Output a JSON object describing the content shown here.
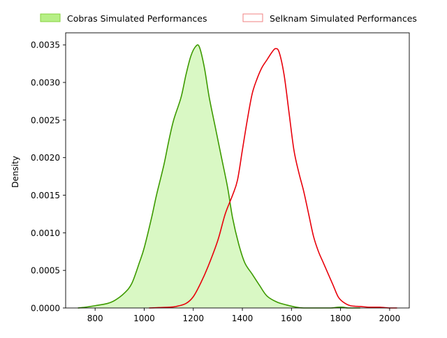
{
  "chart_data": {
    "type": "area",
    "xlabel": "",
    "ylabel": "Density",
    "xlim": [
      680,
      2080
    ],
    "ylim": [
      0,
      0.00366
    ],
    "x_ticks": [
      800,
      1000,
      1200,
      1400,
      1600,
      1800,
      2000
    ],
    "y_ticks": [
      0.0,
      0.0005,
      0.001,
      0.0015,
      0.002,
      0.0025,
      0.003,
      0.0035
    ],
    "y_tick_labels": [
      "0.0000",
      "0.0005",
      "0.0010",
      "0.0015",
      "0.0020",
      "0.0025",
      "0.0030",
      "0.0035"
    ],
    "grid": false,
    "legend_position": "top-center, outside plot",
    "series": [
      {
        "name": "Cobras Simulated Performances",
        "filled": true,
        "line_color": "#3d9a00",
        "fill_color": "#d9f8c4",
        "legend_fill": "#b6ef86",
        "legend_edge": "#86d23c",
        "points": [
          [
            730,
            0.0
          ],
          [
            760,
            1e-05
          ],
          [
            800,
            3e-05
          ],
          [
            850,
            6e-05
          ],
          [
            880,
            0.0001
          ],
          [
            920,
            0.0002
          ],
          [
            950,
            0.00033
          ],
          [
            980,
            0.0006
          ],
          [
            1000,
            0.0008
          ],
          [
            1030,
            0.0012
          ],
          [
            1050,
            0.0015
          ],
          [
            1080,
            0.0019
          ],
          [
            1100,
            0.00222
          ],
          [
            1120,
            0.0025
          ],
          [
            1150,
            0.0028
          ],
          [
            1170,
            0.0031
          ],
          [
            1190,
            0.00335
          ],
          [
            1210,
            0.00348
          ],
          [
            1225,
            0.00347
          ],
          [
            1245,
            0.0032
          ],
          [
            1265,
            0.0028
          ],
          [
            1290,
            0.0024
          ],
          [
            1315,
            0.002
          ],
          [
            1340,
            0.0016
          ],
          [
            1360,
            0.0012
          ],
          [
            1385,
            0.00085
          ],
          [
            1410,
            0.0006
          ],
          [
            1440,
            0.00045
          ],
          [
            1470,
            0.0003
          ],
          [
            1500,
            0.00016
          ],
          [
            1540,
            8e-05
          ],
          [
            1580,
            4e-05
          ],
          [
            1620,
            1e-05
          ],
          [
            1650,
            0.0
          ],
          [
            1700,
            0.0
          ],
          [
            1760,
            0.0
          ],
          [
            1790,
            1e-05
          ],
          [
            1810,
            1e-05
          ],
          [
            1830,
            0.0
          ],
          [
            1880,
            0.0
          ]
        ]
      },
      {
        "name": "Selknam Simulated Performances",
        "filled": false,
        "line_color": "#e8000b",
        "legend_fill": "#ffffff",
        "legend_edge": "#f08080",
        "points": [
          [
            1020,
            0.0
          ],
          [
            1060,
            5e-06
          ],
          [
            1100,
            1e-05
          ],
          [
            1130,
            2e-05
          ],
          [
            1170,
            6e-05
          ],
          [
            1200,
            0.00015
          ],
          [
            1230,
            0.00033
          ],
          [
            1260,
            0.00055
          ],
          [
            1300,
            0.0009
          ],
          [
            1330,
            0.00125
          ],
          [
            1360,
            0.0015
          ],
          [
            1380,
            0.0017
          ],
          [
            1400,
            0.0021
          ],
          [
            1420,
            0.0025
          ],
          [
            1440,
            0.00285
          ],
          [
            1460,
            0.00305
          ],
          [
            1480,
            0.0032
          ],
          [
            1500,
            0.0033
          ],
          [
            1520,
            0.0034
          ],
          [
            1535,
            0.00345
          ],
          [
            1550,
            0.0034
          ],
          [
            1570,
            0.0031
          ],
          [
            1590,
            0.0026
          ],
          [
            1610,
            0.0021
          ],
          [
            1630,
            0.0018
          ],
          [
            1650,
            0.00155
          ],
          [
            1670,
            0.00125
          ],
          [
            1690,
            0.00095
          ],
          [
            1710,
            0.00075
          ],
          [
            1730,
            0.0006
          ],
          [
            1750,
            0.00045
          ],
          [
            1770,
            0.0003
          ],
          [
            1790,
            0.00015
          ],
          [
            1810,
            8e-05
          ],
          [
            1840,
            3e-05
          ],
          [
            1880,
            2e-05
          ],
          [
            1920,
            1e-05
          ],
          [
            1960,
            1e-05
          ],
          [
            2000,
            0.0
          ],
          [
            2030,
            0.0
          ]
        ]
      }
    ]
  }
}
